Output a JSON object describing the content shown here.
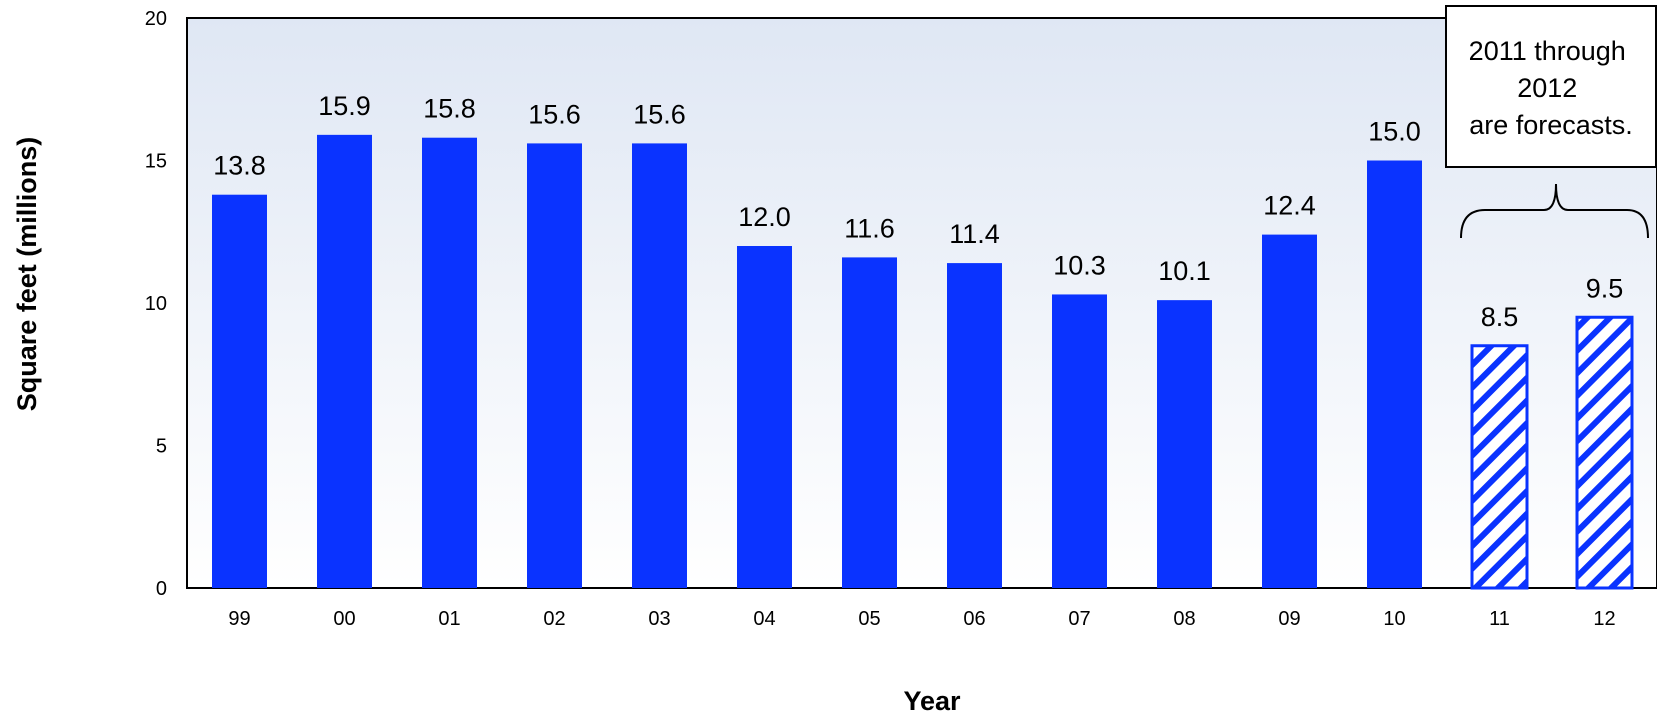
{
  "chart_data": {
    "type": "bar",
    "title": "",
    "xlabel": "Year",
    "ylabel": "Square feet (millions)",
    "ylim": [
      0,
      20
    ],
    "yticks": [
      0,
      5,
      10,
      15,
      20
    ],
    "ytick_labels": [
      "0",
      "5",
      "10",
      "15",
      "20"
    ],
    "categories": [
      "99",
      "00",
      "01",
      "02",
      "03",
      "04",
      "05",
      "06",
      "07",
      "08",
      "09",
      "10",
      "11",
      "12"
    ],
    "values": [
      13.8,
      15.9,
      15.8,
      15.6,
      15.6,
      12.0,
      11.6,
      11.4,
      10.3,
      10.1,
      12.4,
      15.0,
      8.5,
      9.5
    ],
    "value_labels": [
      "13.8",
      "15.9",
      "15.8",
      "15.6",
      "15.6",
      "12.0",
      "11.6",
      "11.4",
      "10.3",
      "10.1",
      "12.4",
      "15.0",
      "8.5",
      "9.5"
    ],
    "forecast": [
      false,
      false,
      false,
      false,
      false,
      false,
      false,
      false,
      false,
      false,
      false,
      false,
      true,
      true
    ],
    "annotation": {
      "lines": [
        "2011 through",
        "2012",
        "are forecasts."
      ]
    },
    "grid": false,
    "colors": {
      "bar": "#0a33ff",
      "forecast_hatch": "#0a33ff",
      "plot_bg_top": "#dfe7f4",
      "plot_bg_bottom": "#ffffff"
    }
  }
}
